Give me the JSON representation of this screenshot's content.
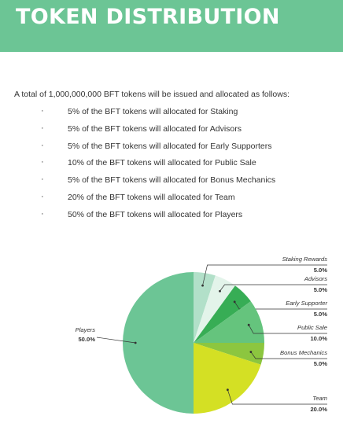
{
  "header": {
    "title": "TOKEN DISTRIBUTION"
  },
  "intro": "A total of 1,000,000,000 BFT tokens will be issued and allocated as follows:",
  "allocation_items": [
    "5% of the BFT tokens will allocated for Staking",
    "5% of the BFT tokens will allocated for Advisors",
    "5% of the BFT tokens will allocated for Early Supporters",
    "10% of the BFT tokens will allocated for Public Sale",
    "5% of the BFT tokens will allocated for Bonus Mechanics",
    "20% of the BFT tokens will allocated for Team",
    "50% of the BFT tokens will allocated for Players"
  ],
  "bullet_char": "·",
  "colors": {
    "banner": "#6cc595",
    "banner_text": "#ffffff"
  },
  "chart_data": {
    "type": "pie",
    "slices": [
      {
        "name": "Staking Rewards",
        "value": 5.0,
        "label": "5.0%",
        "color": "#b2e0c9"
      },
      {
        "name": "Advisors",
        "value": 5.0,
        "label": "5.0%",
        "color": "#e3f4ea"
      },
      {
        "name": "Early Supporter",
        "value": 5.0,
        "label": "5.0%",
        "color": "#37ad55"
      },
      {
        "name": "Public Sale",
        "value": 10.0,
        "label": "10.0%",
        "color": "#65c47d"
      },
      {
        "name": "Bonus Mechanics",
        "value": 5.0,
        "label": "5.0%",
        "color": "#8cc63f"
      },
      {
        "name": "Team",
        "value": 20.0,
        "label": "20.0%",
        "color": "#d4e024"
      },
      {
        "name": "Players",
        "value": 50.0,
        "label": "50.0%",
        "color": "#6cc595"
      }
    ]
  }
}
